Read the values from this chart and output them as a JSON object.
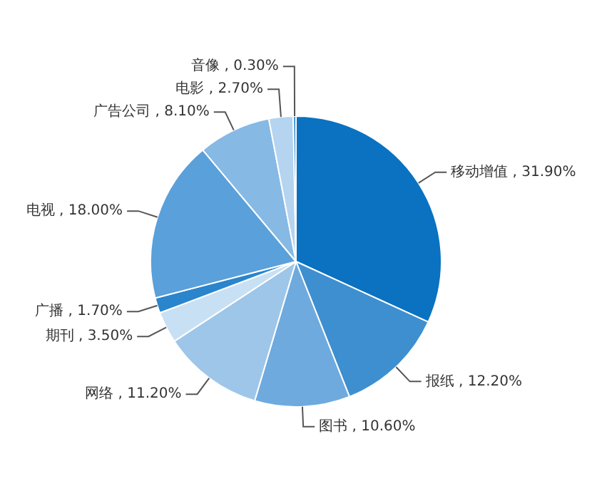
{
  "chart_data": {
    "type": "pie",
    "categories": [
      "移动增值",
      "报纸",
      "图书",
      "网络",
      "期刊",
      "广播",
      "电视",
      "广告公司",
      "电影",
      "音像"
    ],
    "values": [
      31.9,
      12.2,
      10.6,
      11.2,
      3.5,
      1.7,
      18.0,
      8.1,
      2.7,
      0.3
    ],
    "value_labels": [
      "31.90%",
      "12.20%",
      "10.60%",
      "11.20%",
      "3.50%",
      "1.70%",
      "18.00%",
      "8.10%",
      "2.70%",
      "0.30%"
    ],
    "colors": [
      "#0a72c0",
      "#3d8fd0",
      "#6eaade",
      "#9dc6e9",
      "#c8e0f4",
      "#2a85cc",
      "#5aa0da",
      "#86b9e4",
      "#b4d4f0",
      "#2f86cc"
    ],
    "legend": false
  }
}
